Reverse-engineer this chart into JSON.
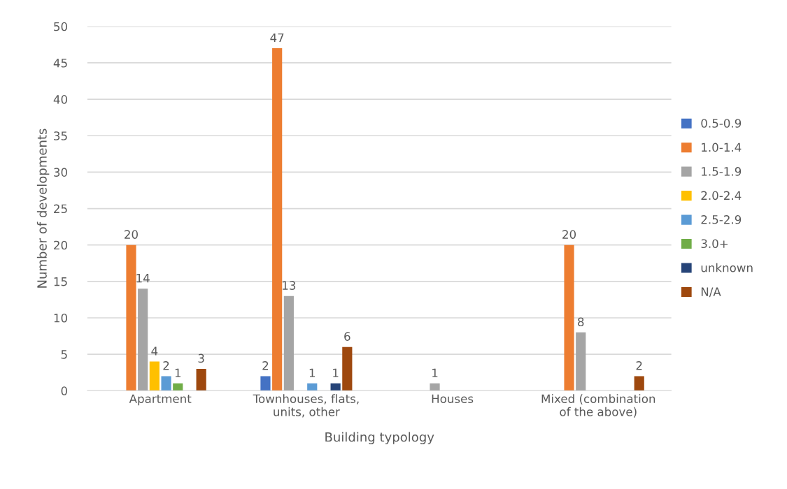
{
  "chart_data": {
    "type": "bar",
    "xlabel": "Building typology",
    "ylabel": "Number of developments",
    "categories": [
      "Apartment",
      "Townhouses, flats,\nunits, other",
      "Houses",
      "Mixed (combination\nof the above)"
    ],
    "series": [
      {
        "name": "0.5-0.9",
        "color": "#4472c4",
        "values": [
          null,
          2,
          null,
          null
        ]
      },
      {
        "name": "1.0-1.4",
        "color": "#ed7d31",
        "values": [
          20,
          47,
          null,
          20
        ]
      },
      {
        "name": "1.5-1.9",
        "color": "#a5a5a5",
        "values": [
          14,
          13,
          1,
          8
        ]
      },
      {
        "name": "2.0-2.4",
        "color": "#ffc000",
        "values": [
          4,
          null,
          null,
          null
        ]
      },
      {
        "name": "2.5-2.9",
        "color": "#5b9bd5",
        "values": [
          2,
          1,
          null,
          null
        ]
      },
      {
        "name": "3.0+",
        "color": "#70ad47",
        "values": [
          1,
          null,
          null,
          null
        ]
      },
      {
        "name": "unknown",
        "color": "#264478",
        "values": [
          null,
          1,
          null,
          null
        ]
      },
      {
        "name": "N/A",
        "color": "#9e480e",
        "values": [
          3,
          6,
          null,
          2
        ]
      }
    ],
    "ylim": [
      0,
      50
    ],
    "yticks": [
      0,
      5,
      10,
      15,
      20,
      25,
      30,
      35,
      40,
      45,
      50
    ],
    "grid": "y",
    "legend": "right",
    "data_labels": true
  }
}
